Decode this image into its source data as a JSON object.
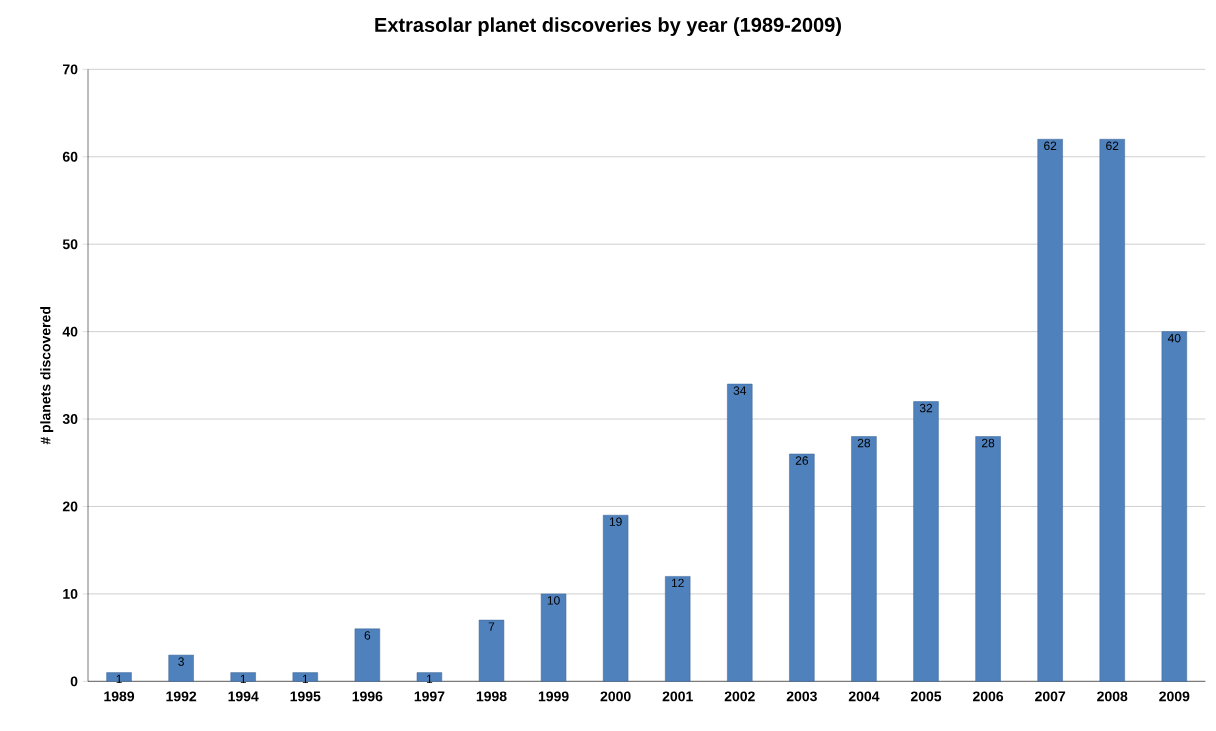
{
  "chart_data": {
    "type": "bar",
    "title": "Extrasolar planet discoveries by year (1989-2009)",
    "ylabel": "# planets discovered",
    "categories": [
      "1989",
      "1992",
      "1994",
      "1995",
      "1996",
      "1997",
      "1998",
      "1999",
      "2000",
      "2001",
      "2002",
      "2003",
      "2004",
      "2005",
      "2006",
      "2007",
      "2008",
      "2009"
    ],
    "values": [
      1,
      3,
      1,
      1,
      6,
      1,
      7,
      10,
      19,
      12,
      34,
      26,
      28,
      32,
      28,
      62,
      62,
      40
    ],
    "color": "#4f81bd",
    "ylim": [
      0,
      70
    ],
    "yticks": [
      0,
      10,
      20,
      30,
      40,
      50,
      60,
      70
    ],
    "grid": "y",
    "data_labels": true
  }
}
